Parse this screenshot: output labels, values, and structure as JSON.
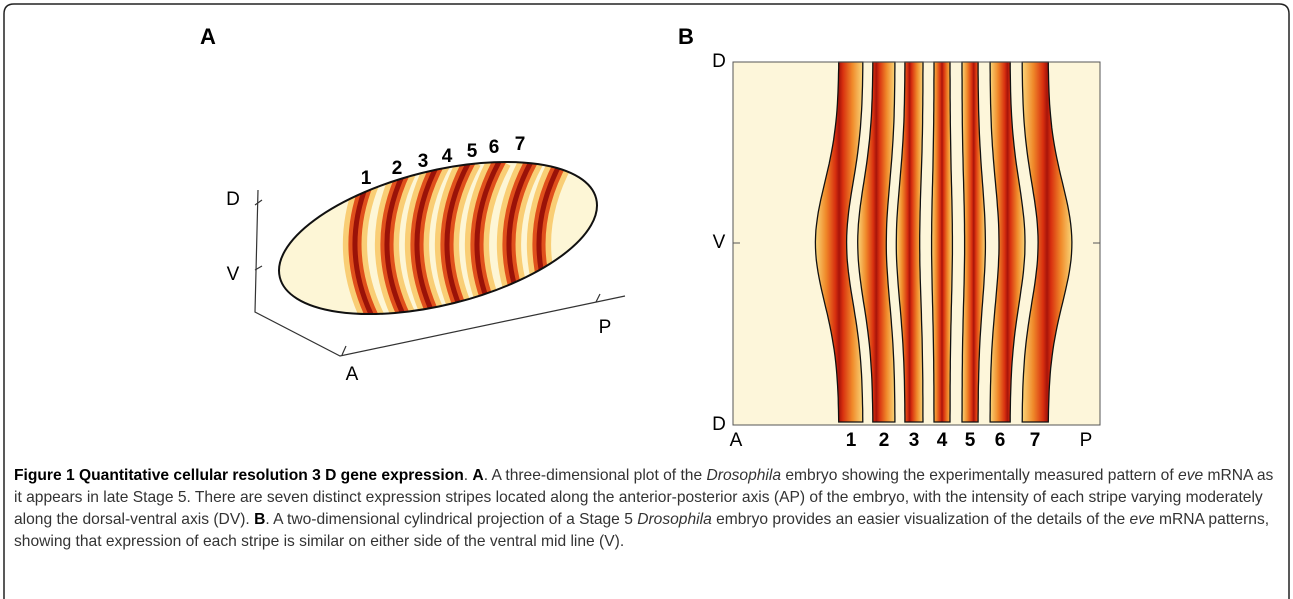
{
  "panel_a": {
    "label": "A",
    "stripe_labels": [
      "1",
      "2",
      "3",
      "4",
      "5",
      "6",
      "7"
    ],
    "axis_labels": {
      "dorsal": "D",
      "ventral": "V",
      "anterior": "A",
      "posterior": "P"
    }
  },
  "panel_b": {
    "label": "B",
    "stripe_labels": [
      "1",
      "2",
      "3",
      "4",
      "5",
      "6",
      "7"
    ],
    "axis_labels": {
      "dorsal_top": "D",
      "ventral": "V",
      "dorsal_bottom": "D",
      "anterior": "A",
      "posterior": "P"
    }
  },
  "caption": [
    {
      "text": "Figure 1 Quantitative cellular resolution 3 D gene expression",
      "style": "bold"
    },
    {
      "text": ". ",
      "style": "normal"
    },
    {
      "text": "A",
      "style": "bold"
    },
    {
      "text": ". A three-dimensional plot of the ",
      "style": "normal"
    },
    {
      "text": "Drosophila",
      "style": "italic"
    },
    {
      "text": " embryo showing the experimentally measured pattern of ",
      "style": "normal"
    },
    {
      "text": "eve",
      "style": "italic"
    },
    {
      "text": " mRNA as it appears in late Stage 5. There are seven distinct expression stripes located along the anterior-posterior axis (AP) of the embryo, with the intensity of each stripe varying moderately along the dorsal-ventral axis (DV). ",
      "style": "normal"
    },
    {
      "text": "B",
      "style": "bold"
    },
    {
      "text": ". A two-dimensional cylindrical projection of a Stage 5 ",
      "style": "normal"
    },
    {
      "text": "Drosophila",
      "style": "italic"
    },
    {
      "text": " embryo provides an easier visualization of the details of the ",
      "style": "normal"
    },
    {
      "text": "eve",
      "style": "italic"
    },
    {
      "text": " mRNA patterns, showing that expression of each stripe is similar on either side of the ventral mid line (V).",
      "style": "normal"
    }
  ]
}
